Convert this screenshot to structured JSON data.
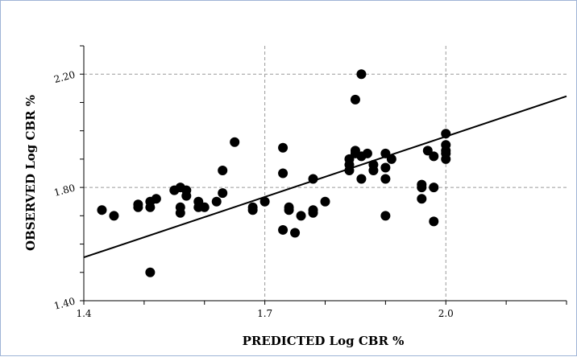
{
  "chart_data": {
    "type": "scatter",
    "title": "",
    "xlabel": "PREDICTED Log CBR %",
    "ylabel": "OBSERVED Log CBR %",
    "xlim": [
      1.4,
      2.2
    ],
    "ylim": [
      1.4,
      2.3
    ],
    "x_ticks": [
      1.4,
      1.7,
      2.0
    ],
    "x_tick_labels": [
      "1.4",
      "1.7",
      "2.0"
    ],
    "y_ticks": [
      1.4,
      1.8,
      2.2
    ],
    "y_tick_labels": [
      "1.40",
      "1.80",
      "2.20"
    ],
    "grid": true,
    "legend": "none",
    "marker_color": "#000000",
    "trend_line": {
      "x": [
        1.4,
        2.2
      ],
      "y": [
        1.553,
        2.122
      ]
    },
    "points": [
      {
        "x": 1.43,
        "y": 1.72
      },
      {
        "x": 1.45,
        "y": 1.7
      },
      {
        "x": 1.49,
        "y": 1.74
      },
      {
        "x": 1.49,
        "y": 1.73
      },
      {
        "x": 1.51,
        "y": 1.73
      },
      {
        "x": 1.51,
        "y": 1.75
      },
      {
        "x": 1.52,
        "y": 1.76
      },
      {
        "x": 1.51,
        "y": 1.5
      },
      {
        "x": 1.55,
        "y": 1.79
      },
      {
        "x": 1.56,
        "y": 1.8
      },
      {
        "x": 1.57,
        "y": 1.79
      },
      {
        "x": 1.57,
        "y": 1.77
      },
      {
        "x": 1.56,
        "y": 1.73
      },
      {
        "x": 1.56,
        "y": 1.71
      },
      {
        "x": 1.59,
        "y": 1.75
      },
      {
        "x": 1.59,
        "y": 1.73
      },
      {
        "x": 1.6,
        "y": 1.73
      },
      {
        "x": 1.62,
        "y": 1.75
      },
      {
        "x": 1.63,
        "y": 1.78
      },
      {
        "x": 1.63,
        "y": 1.86
      },
      {
        "x": 1.65,
        "y": 1.96
      },
      {
        "x": 1.68,
        "y": 1.73
      },
      {
        "x": 1.68,
        "y": 1.72
      },
      {
        "x": 1.7,
        "y": 1.75
      },
      {
        "x": 1.73,
        "y": 1.94
      },
      {
        "x": 1.73,
        "y": 1.85
      },
      {
        "x": 1.74,
        "y": 1.73
      },
      {
        "x": 1.74,
        "y": 1.72
      },
      {
        "x": 1.73,
        "y": 1.65
      },
      {
        "x": 1.75,
        "y": 1.64
      },
      {
        "x": 1.76,
        "y": 1.7
      },
      {
        "x": 1.78,
        "y": 1.72
      },
      {
        "x": 1.78,
        "y": 1.71
      },
      {
        "x": 1.78,
        "y": 1.83
      },
      {
        "x": 1.8,
        "y": 1.75
      },
      {
        "x": 1.84,
        "y": 1.9
      },
      {
        "x": 1.84,
        "y": 1.88
      },
      {
        "x": 1.84,
        "y": 1.86
      },
      {
        "x": 1.85,
        "y": 1.92
      },
      {
        "x": 1.85,
        "y": 1.93
      },
      {
        "x": 1.85,
        "y": 2.11
      },
      {
        "x": 1.86,
        "y": 2.2
      },
      {
        "x": 1.86,
        "y": 1.91
      },
      {
        "x": 1.87,
        "y": 1.92
      },
      {
        "x": 1.86,
        "y": 1.83
      },
      {
        "x": 1.88,
        "y": 1.88
      },
      {
        "x": 1.88,
        "y": 1.86
      },
      {
        "x": 1.9,
        "y": 1.92
      },
      {
        "x": 1.9,
        "y": 1.87
      },
      {
        "x": 1.9,
        "y": 1.83
      },
      {
        "x": 1.91,
        "y": 1.9
      },
      {
        "x": 1.9,
        "y": 1.7
      },
      {
        "x": 1.96,
        "y": 1.81
      },
      {
        "x": 1.96,
        "y": 1.8
      },
      {
        "x": 1.96,
        "y": 1.76
      },
      {
        "x": 1.97,
        "y": 1.93
      },
      {
        "x": 1.98,
        "y": 1.91
      },
      {
        "x": 1.98,
        "y": 1.8
      },
      {
        "x": 1.98,
        "y": 1.68
      },
      {
        "x": 2.0,
        "y": 1.99
      },
      {
        "x": 2.0,
        "y": 1.95
      },
      {
        "x": 2.0,
        "y": 1.93
      },
      {
        "x": 2.0,
        "y": 1.92
      },
      {
        "x": 2.0,
        "y": 1.9
      }
    ]
  }
}
